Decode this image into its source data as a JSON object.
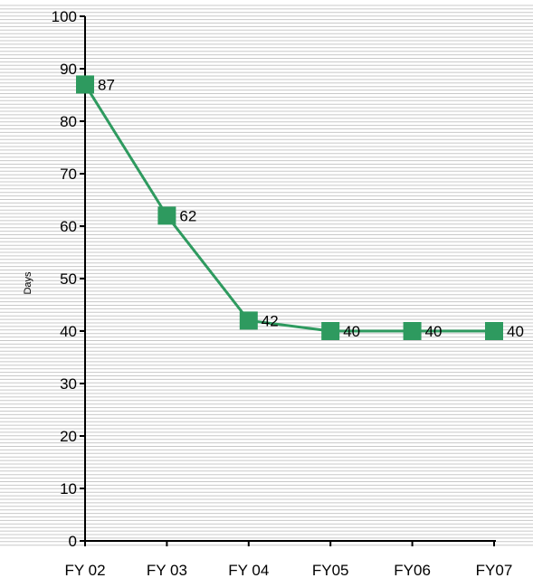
{
  "chart_data": {
    "type": "line",
    "categories": [
      "FY 02",
      "FY 03",
      "FY 04",
      "FY05",
      "FY06",
      "FY07"
    ],
    "series": [
      {
        "values": [
          87,
          62,
          42,
          40,
          40,
          40
        ]
      }
    ],
    "data_labels": [
      "87",
      "62",
      "42",
      "40",
      "40",
      "40"
    ],
    "y_ticks": [
      0,
      10,
      20,
      30,
      40,
      50,
      60,
      70,
      80,
      90,
      100
    ],
    "title": "",
    "xlabel": "",
    "ylabel": "Days",
    "ylim": [
      0,
      100
    ],
    "grid": true,
    "legend": "none",
    "colors": {
      "series": "#2e9a5f",
      "gridline": "#c8c8c8",
      "axis": "#000000"
    }
  }
}
